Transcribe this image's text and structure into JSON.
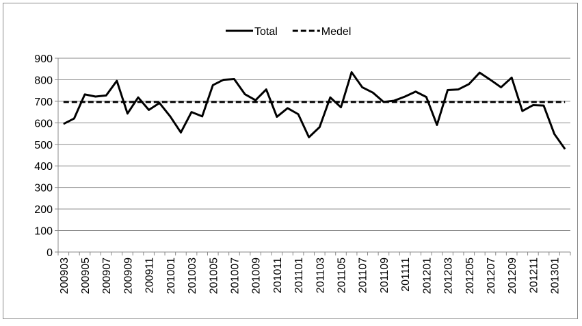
{
  "chart_data": {
    "type": "line",
    "categories": [
      "200903",
      null,
      "200905",
      null,
      "200907",
      null,
      "200909",
      null,
      "200911",
      null,
      "201001",
      null,
      "201003",
      null,
      "201005",
      null,
      "201007",
      null,
      "201009",
      null,
      "201011",
      null,
      "201101",
      null,
      "201103",
      null,
      "201105",
      null,
      "201107",
      null,
      "201109",
      null,
      "201111",
      null,
      "201201",
      null,
      "201203",
      null,
      "201205",
      null,
      "201207",
      null,
      "201209",
      null,
      "201211",
      null,
      "201301",
      null
    ],
    "series": [
      {
        "name": "Total",
        "color": "#000000",
        "dash": false,
        "values": [
          595,
          620,
          732,
          722,
          727,
          795,
          643,
          718,
          660,
          692,
          630,
          555,
          650,
          630,
          775,
          800,
          803,
          733,
          705,
          755,
          628,
          668,
          640,
          533,
          580,
          718,
          672,
          835,
          765,
          740,
          697,
          703,
          722,
          745,
          720,
          590,
          752,
          755,
          780,
          833,
          800,
          765,
          810,
          655,
          682,
          680,
          548,
          478
        ]
      },
      {
        "name": "Medel",
        "color": "#000000",
        "dash": true,
        "values": [
          697,
          697,
          697,
          697,
          697,
          697,
          697,
          697,
          697,
          697,
          697,
          697,
          697,
          697,
          697,
          697,
          697,
          697,
          697,
          697,
          697,
          697,
          697,
          697,
          697,
          697,
          697,
          697,
          697,
          697,
          697,
          697,
          697,
          697,
          697,
          697,
          697,
          697,
          697,
          697,
          697,
          697,
          697,
          697,
          697,
          697,
          697,
          697
        ]
      }
    ],
    "ylim": [
      0,
      900
    ],
    "yticks": [
      0,
      100,
      200,
      300,
      400,
      500,
      600,
      700,
      800,
      900
    ],
    "grid": true,
    "legend": "top"
  }
}
